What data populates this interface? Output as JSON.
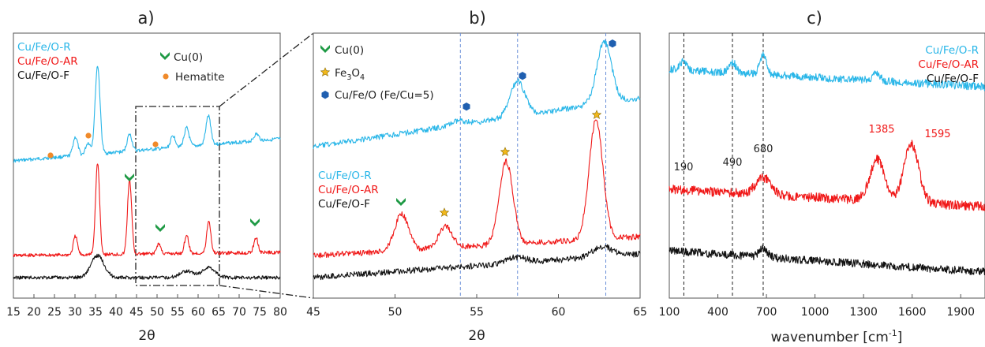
{
  "colors": {
    "R": "#29b6e8",
    "AR": "#f01818",
    "F": "#111111",
    "axis": "#333333",
    "cu_marker": "#1f9a45",
    "hematite_marker": "#f08a2a",
    "fe3o4_marker": "#f2b81b",
    "cufeo_marker": "#1f5fb0",
    "guide_blue": "#6a8fd8"
  },
  "chart_data": [
    {
      "type": "line",
      "panel": "a)",
      "xlabel": "2θ",
      "xlim": [
        15,
        80
      ],
      "xticks": [
        "15",
        "20",
        "25",
        "30",
        "35",
        "40",
        "45",
        "50",
        "55",
        "60",
        "65",
        "70",
        "75",
        "80"
      ],
      "yaxis": "offset intensity, no tick labels",
      "series": [
        {
          "name": "Cu/Fe/O-R",
          "color_key": "R",
          "peaks": [
            [
              30.1,
              0.55
            ],
            [
              33.2,
              0.35
            ],
            [
              35.5,
              2.6
            ],
            [
              43.3,
              0.5
            ],
            [
              53.9,
              0.35
            ],
            [
              57.2,
              0.55
            ],
            [
              62.5,
              0.85
            ],
            [
              74.2,
              0.2
            ]
          ]
        },
        {
          "name": "Cu/Fe/O-AR",
          "color_key": "AR",
          "peaks": [
            [
              30.1,
              0.55
            ],
            [
              35.5,
              2.7
            ],
            [
              43.3,
              2.2
            ],
            [
              50.4,
              0.3
            ],
            [
              57.2,
              0.55
            ],
            [
              62.6,
              0.95
            ],
            [
              74.1,
              0.45
            ]
          ]
        },
        {
          "name": "Cu/Fe/O-F",
          "color_key": "F",
          "peaks": [
            [
              35.5,
              0.65
            ],
            [
              57.2,
              0.2
            ],
            [
              62.6,
              0.3
            ]
          ]
        }
      ],
      "legend": [
        "Cu/Fe/O-R",
        "Cu/Fe/O-AR",
        "Cu/Fe/O-F"
      ],
      "marker_legend": [
        "Cu(0)",
        "Hematite"
      ],
      "zoom_box_x": [
        45,
        65
      ]
    },
    {
      "type": "line",
      "panel": "b)",
      "xlabel": "2θ",
      "xlim": [
        45,
        65
      ],
      "xticks": [
        "45",
        "50",
        "55",
        "60",
        "65"
      ],
      "yaxis": "offset intensity, no tick labels",
      "guide_lines_x": [
        54.0,
        57.5,
        62.9
      ],
      "series": [
        {
          "name": "Cu/Fe/O-R",
          "color_key": "R",
          "peaks": [
            [
              53.9,
              0.15
            ],
            [
              57.5,
              1.3
            ],
            [
              62.8,
              2.3
            ]
          ]
        },
        {
          "name": "Cu/Fe/O-AR",
          "color_key": "AR",
          "peaks": [
            [
              50.4,
              1.1
            ],
            [
              53.1,
              0.65
            ],
            [
              56.8,
              2.5
            ],
            [
              62.3,
              3.6
            ]
          ]
        },
        {
          "name": "Cu/Fe/O-F",
          "color_key": "F",
          "peaks": [
            [
              57.4,
              0.2
            ],
            [
              62.7,
              0.35
            ]
          ]
        }
      ],
      "legend": [
        "Cu/Fe/O-R",
        "Cu/Fe/O-AR",
        "Cu/Fe/O-F"
      ],
      "marker_legend": [
        "Cu(0)",
        "Fe3O4",
        "Cu/Fe/O (Fe/Cu=5)"
      ],
      "fe3o4_parts": {
        "base": "Fe",
        "sub1": "3",
        "mid": "O",
        "sub2": "4"
      }
    },
    {
      "type": "line",
      "panel": "c)",
      "xlabel": "wavenumber [cm-1]",
      "xlabel_parts": {
        "main": "wavenumber [cm",
        "sup": "-1",
        "close": "]"
      },
      "xlim": [
        100,
        2050
      ],
      "xticks": [
        "100",
        "400",
        "700",
        "1000",
        "1300",
        "1600",
        "1900"
      ],
      "yaxis": "offset intensity, no tick labels",
      "guide_lines_x": [
        190,
        490,
        680
      ],
      "annotations": [
        "190",
        "490",
        "680",
        "1385",
        "1595"
      ],
      "series": [
        {
          "name": "Cu/Fe/O-R",
          "color_key": "R",
          "peaks": [
            [
              190,
              0.6
            ],
            [
              490,
              0.7
            ],
            [
              680,
              1.3
            ],
            [
              1380,
              0.55
            ]
          ]
        },
        {
          "name": "Cu/Fe/O-AR",
          "color_key": "AR",
          "peaks": [
            [
              680,
              0.9
            ],
            [
              1385,
              2.2
            ],
            [
              1595,
              3.1
            ]
          ]
        },
        {
          "name": "Cu/Fe/O-F",
          "color_key": "F",
          "peaks": [
            [
              680,
              0.9
            ]
          ]
        }
      ],
      "legend": [
        "Cu/Fe/O-R",
        "Cu/Fe/O-AR",
        "Cu/Fe/O-F"
      ]
    }
  ]
}
